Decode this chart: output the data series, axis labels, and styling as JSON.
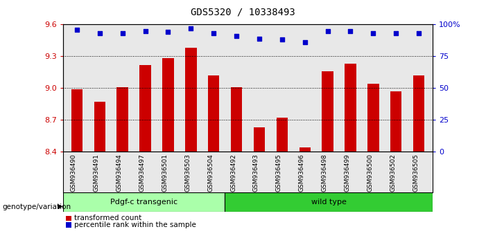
{
  "title": "GDS5320 / 10338493",
  "samples": [
    "GSM936490",
    "GSM936491",
    "GSM936494",
    "GSM936497",
    "GSM936501",
    "GSM936503",
    "GSM936504",
    "GSM936492",
    "GSM936493",
    "GSM936495",
    "GSM936496",
    "GSM936498",
    "GSM936499",
    "GSM936500",
    "GSM936502",
    "GSM936505"
  ],
  "bar_values": [
    8.99,
    8.87,
    9.01,
    9.22,
    9.28,
    9.38,
    9.12,
    9.01,
    8.63,
    8.72,
    8.44,
    9.16,
    9.23,
    9.04,
    8.97,
    9.12
  ],
  "percentile_values": [
    96,
    93,
    93,
    95,
    94,
    97,
    93,
    91,
    89,
    88,
    86,
    95,
    95,
    93,
    93,
    93
  ],
  "bar_color": "#cc0000",
  "dot_color": "#0000cc",
  "ylim_left": [
    8.4,
    9.6
  ],
  "ylim_right": [
    0,
    100
  ],
  "yticks_left": [
    8.4,
    8.7,
    9.0,
    9.3,
    9.6
  ],
  "yticks_right": [
    0,
    25,
    50,
    75,
    100
  ],
  "ytick_labels_right": [
    "0",
    "25",
    "50",
    "75",
    "100%"
  ],
  "group1_label": "Pdgf-c transgenic",
  "group2_label": "wild type",
  "group1_count": 7,
  "group2_count": 9,
  "group1_color": "#aaffaa",
  "group2_color": "#33cc33",
  "xlabel_left": "genotype/variation",
  "legend_bar": "transformed count",
  "legend_dot": "percentile rank within the sample",
  "background_color": "#ffffff",
  "plot_bg_color": "#e8e8e8",
  "grid_color": "#000000",
  "title_fontsize": 10,
  "tick_fontsize": 8,
  "label_fontsize": 8
}
